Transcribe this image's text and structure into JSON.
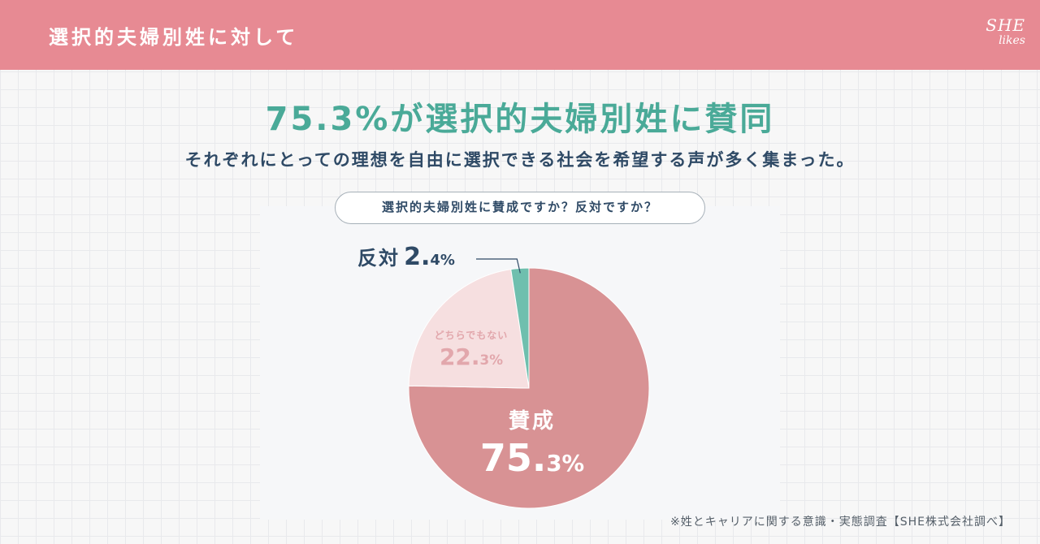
{
  "header": {
    "title": "選択的夫婦別姓に対して"
  },
  "logo": {
    "top": "SHE",
    "bottom": "likes"
  },
  "headline": "75.3%が選択的夫婦別姓に賛同",
  "subline": "それぞれにとっての理想を自由に選択できる社会を希望する声が多く集まった。",
  "question": "選択的夫婦別姓に賛成ですか？反対ですか？",
  "source": "※姓とキャリアに関する意識・実態調査【SHE株式会社調べ】",
  "colors": {
    "agree": "#d89294",
    "neutral": "#f6dfe0",
    "against": "#6fbfae",
    "accent": "#4aaa98",
    "navy": "#2f4a66",
    "header": "#e78a93"
  },
  "chart_data": {
    "type": "pie",
    "title": "選択的夫婦別姓に賛成ですか？反対ですか？",
    "slices": [
      {
        "label": "賛成",
        "value_main": "75.",
        "value_small": "3%",
        "value": 75.3,
        "color": "#d89294"
      },
      {
        "label": "どちらでもない",
        "value_main": "22.",
        "value_small": "3%",
        "value": 22.3,
        "color": "#f6dfe0"
      },
      {
        "label": "反対",
        "value_main": "2.",
        "value_small": "4%",
        "value": 2.4,
        "color": "#6fbfae"
      }
    ]
  }
}
